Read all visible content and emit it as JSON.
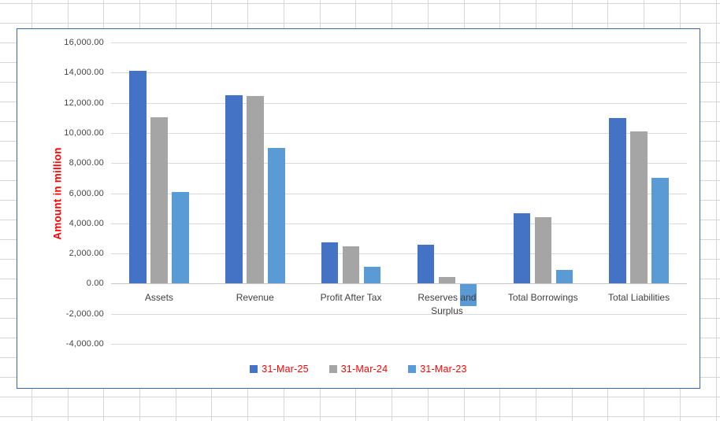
{
  "app": {
    "surface": "spreadsheet-with-embedded-chart",
    "sheet_gridline_color": "#d6d6d6",
    "chart_border_color": "#3c68b0",
    "chart_background": "#ffffff"
  },
  "chart_data": {
    "type": "bar",
    "title": "",
    "xlabel": "",
    "ylabel": "Amount in million",
    "ylabel_color": "#ff0000",
    "legend_text_color": "#ff0000",
    "tick_label_color": "#444444",
    "gridline_color": "#d9d9d9",
    "grid": true,
    "legend_position": "bottom",
    "ylim": [
      -4000,
      16000
    ],
    "ytick_step": 2000,
    "ytick_labels": [
      "16,000.00",
      "14,000.00",
      "12,000.00",
      "10,000.00",
      "8,000.00",
      "6,000.00",
      "4,000.00",
      "2,000.00",
      "0.00",
      "-2,000.00",
      "-4,000.00"
    ],
    "categories": [
      "Assets",
      "Revenue",
      "Profit After Tax",
      "Reserves and Surplus",
      "Total Borrowings",
      "Total Liabilities"
    ],
    "series": [
      {
        "name": "31-Mar-25",
        "color": "#4472c4",
        "values": [
          14100,
          12500,
          2750,
          2600,
          4650,
          11000
        ]
      },
      {
        "name": "31-Mar-24",
        "color": "#a5a5a5",
        "values": [
          11050,
          12450,
          2450,
          430,
          4430,
          10100
        ]
      },
      {
        "name": "31-Mar-23",
        "color": "#5b9bd5",
        "values": [
          6100,
          9000,
          1100,
          -1450,
          930,
          7000
        ]
      }
    ]
  }
}
